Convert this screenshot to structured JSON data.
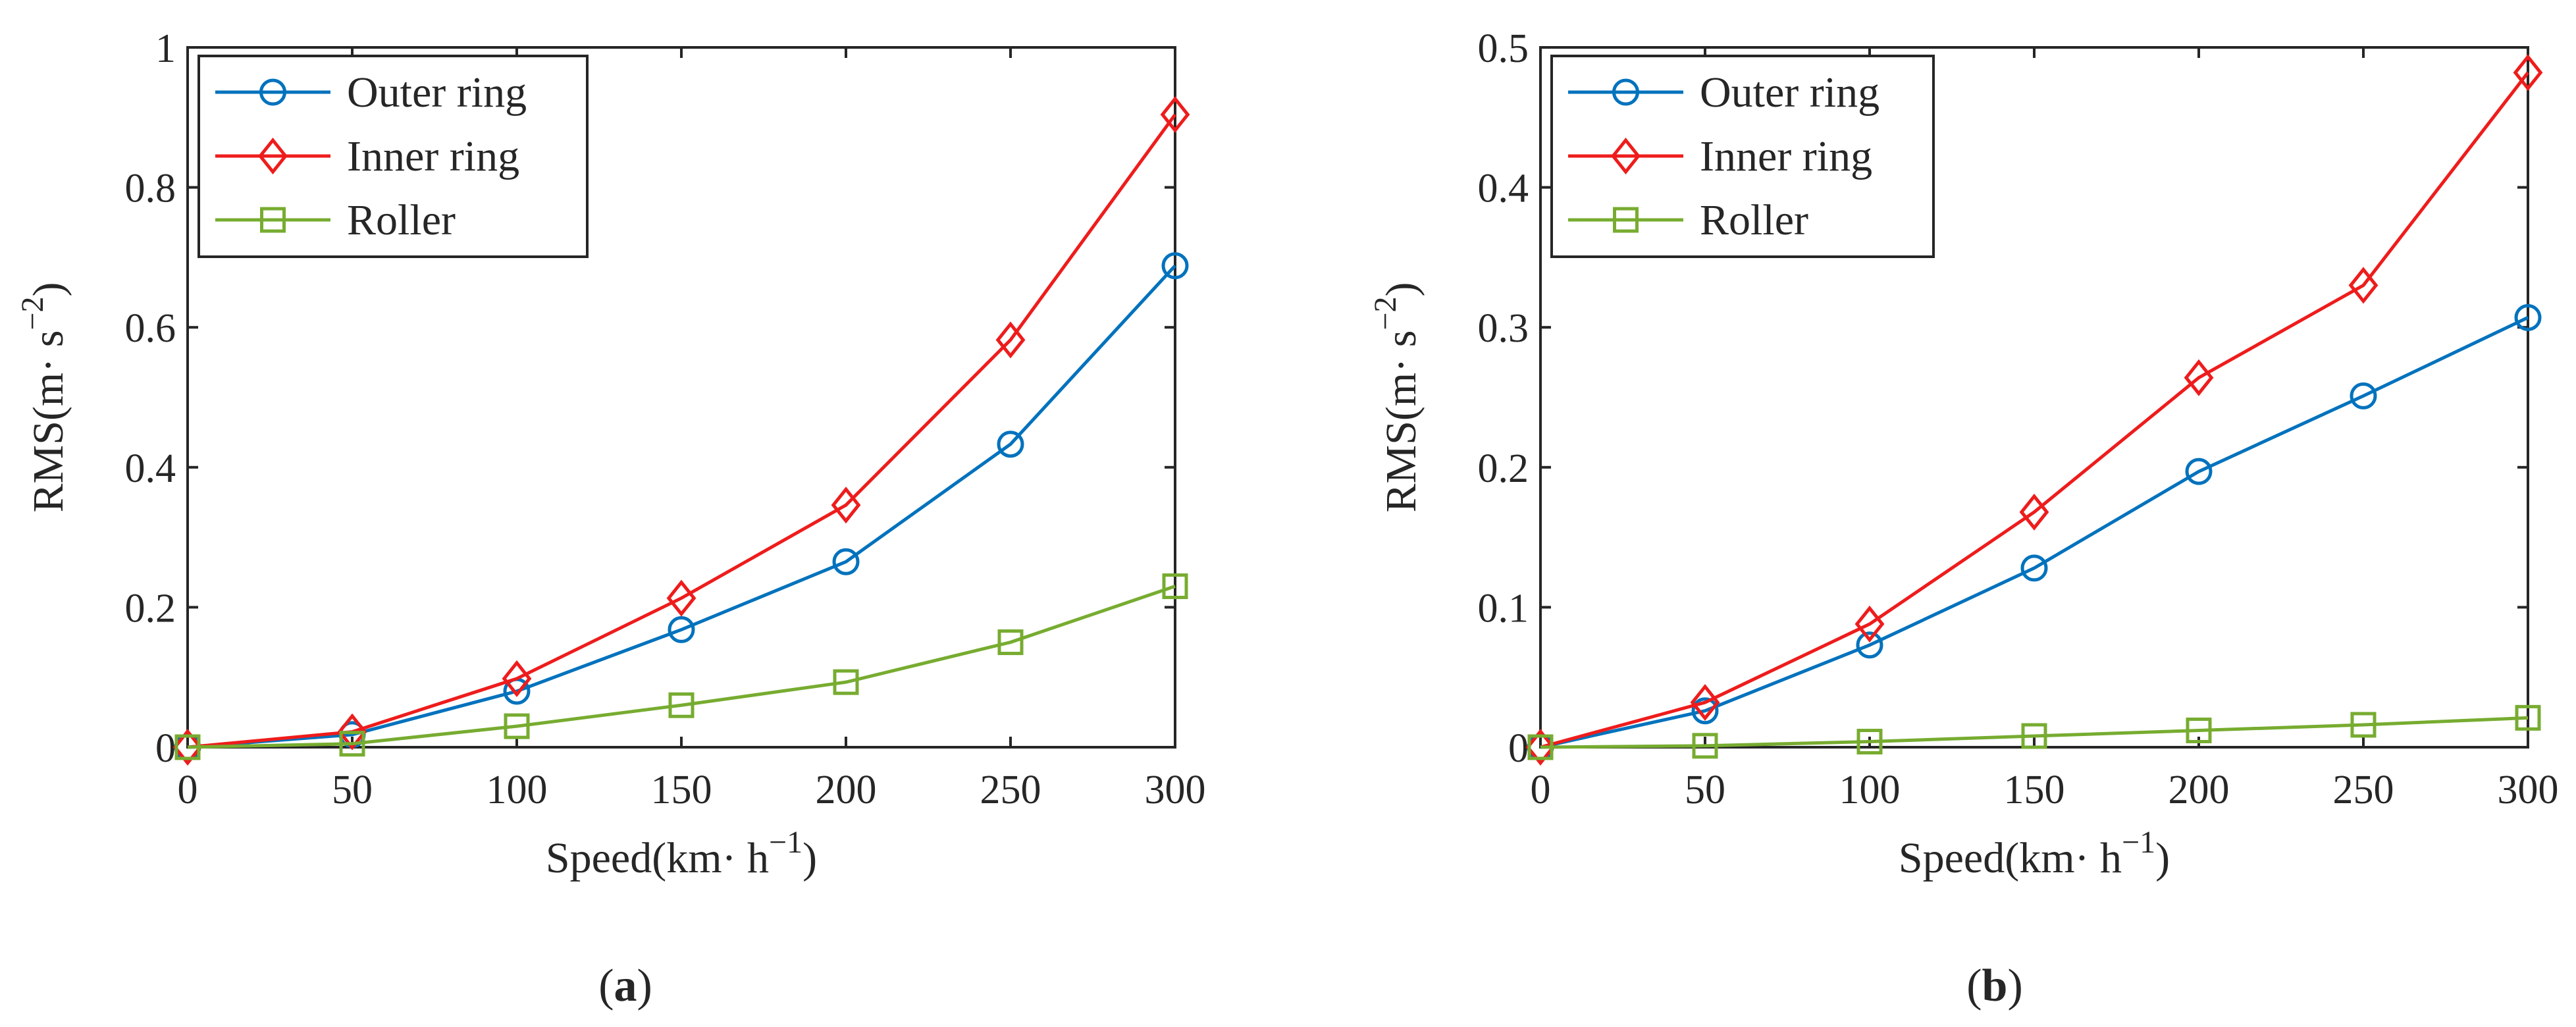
{
  "colors": {
    "outer_ring": "#0072BD",
    "inner_ring": "#EE1C1C",
    "roller": "#77AC30",
    "axis": "#262626"
  },
  "chart_data": [
    {
      "type": "line",
      "panel_label": "a",
      "xlabel": "Speed(km· h",
      "xlabel_exp": "−1",
      "xlabel_close": ")",
      "ylabel": "RMS(m· s",
      "ylabel_exp": "−2",
      "ylabel_close": ")",
      "x": [
        0,
        50,
        100,
        150,
        200,
        250,
        300
      ],
      "xlim": [
        0,
        300
      ],
      "ylim": [
        0,
        1
      ],
      "xticks": [
        0,
        50,
        100,
        150,
        200,
        250,
        300
      ],
      "xtick_labels": [
        "0",
        "50",
        "100",
        "150",
        "200",
        "250",
        "300"
      ],
      "yticks": [
        0,
        0.2,
        0.4,
        0.6,
        0.8,
        1
      ],
      "ytick_labels": [
        "0",
        "0.2",
        "0.4",
        "0.6",
        "0.8",
        "1"
      ],
      "grid": false,
      "legend_position": "top-left",
      "series": [
        {
          "name": "Outer ring",
          "marker": "circle",
          "color_key": "outer_ring",
          "values": [
            0.0,
            0.018,
            0.08,
            0.168,
            0.265,
            0.433,
            0.688
          ]
        },
        {
          "name": "Inner ring",
          "marker": "diamond",
          "color_key": "inner_ring",
          "values": [
            0.0,
            0.022,
            0.098,
            0.213,
            0.346,
            0.582,
            0.904
          ]
        },
        {
          "name": "Roller",
          "marker": "square",
          "color_key": "roller",
          "values": [
            0.0,
            0.005,
            0.03,
            0.06,
            0.093,
            0.15,
            0.23
          ]
        }
      ]
    },
    {
      "type": "line",
      "panel_label": "b",
      "xlabel": "Speed(km· h",
      "xlabel_exp": "−1",
      "xlabel_close": ")",
      "ylabel": "RMS(m· s",
      "ylabel_exp": "−2",
      "ylabel_close": ")",
      "x": [
        0,
        50,
        100,
        150,
        200,
        250,
        300
      ],
      "xlim": [
        0,
        300
      ],
      "ylim": [
        0,
        0.5
      ],
      "xticks": [
        0,
        50,
        100,
        150,
        200,
        250,
        300
      ],
      "xtick_labels": [
        "0",
        "50",
        "100",
        "150",
        "200",
        "250",
        "300"
      ],
      "yticks": [
        0,
        0.1,
        0.2,
        0.3,
        0.4,
        0.5
      ],
      "ytick_labels": [
        "0",
        "0.1",
        "0.2",
        "0.3",
        "0.4",
        "0.5"
      ],
      "grid": false,
      "legend_position": "top-left",
      "series": [
        {
          "name": "Outer ring",
          "marker": "circle",
          "color_key": "outer_ring",
          "values": [
            0.0,
            0.026,
            0.073,
            0.128,
            0.197,
            0.251,
            0.307
          ]
        },
        {
          "name": "Inner ring",
          "marker": "diamond",
          "color_key": "inner_ring",
          "values": [
            0.0,
            0.032,
            0.088,
            0.168,
            0.264,
            0.33,
            0.482
          ]
        },
        {
          "name": "Roller",
          "marker": "square",
          "color_key": "roller",
          "values": [
            0.0,
            0.001,
            0.004,
            0.008,
            0.012,
            0.016,
            0.021
          ]
        }
      ]
    }
  ]
}
